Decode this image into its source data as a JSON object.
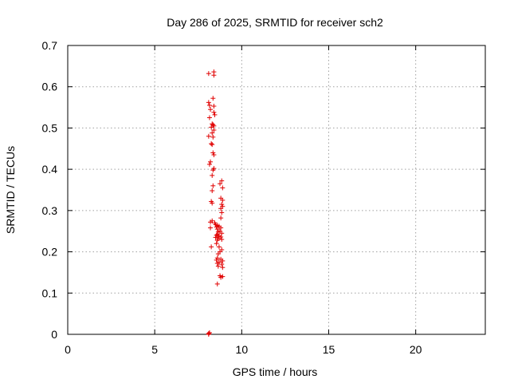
{
  "chart_data": {
    "type": "scatter",
    "title": "Day 286 of 2025, SRMTID for receiver sch2",
    "xlabel": "GPS time / hours",
    "ylabel": "SRMTID / TECUs",
    "xlim": [
      0,
      24
    ],
    "ylim": [
      0,
      0.7
    ],
    "xticks": [
      0,
      5,
      10,
      15,
      20
    ],
    "yticks": [
      0,
      0.1,
      0.2,
      0.3,
      0.4,
      0.5,
      0.6,
      0.7
    ],
    "ytick_labels": [
      "0",
      "0.1",
      "0.2",
      "0.3",
      "0.4",
      "0.5",
      "0.6",
      "0.7"
    ],
    "grid": true,
    "marker": "+",
    "color": "#e00000",
    "series": [
      {
        "name": "sch2",
        "points": [
          [
            8.1,
            0.632
          ],
          [
            8.4,
            0.636
          ],
          [
            8.4,
            0.628
          ],
          [
            8.35,
            0.572
          ],
          [
            8.1,
            0.562
          ],
          [
            8.15,
            0.555
          ],
          [
            8.4,
            0.553
          ],
          [
            8.2,
            0.545
          ],
          [
            8.4,
            0.538
          ],
          [
            8.45,
            0.532
          ],
          [
            8.15,
            0.525
          ],
          [
            8.3,
            0.51
          ],
          [
            8.35,
            0.508
          ],
          [
            8.4,
            0.505
          ],
          [
            8.25,
            0.502
          ],
          [
            8.4,
            0.495
          ],
          [
            8.3,
            0.488
          ],
          [
            8.1,
            0.48
          ],
          [
            8.35,
            0.478
          ],
          [
            8.25,
            0.462
          ],
          [
            8.3,
            0.46
          ],
          [
            8.35,
            0.44
          ],
          [
            8.4,
            0.435
          ],
          [
            8.2,
            0.418
          ],
          [
            8.15,
            0.412
          ],
          [
            8.4,
            0.402
          ],
          [
            8.35,
            0.398
          ],
          [
            8.3,
            0.385
          ],
          [
            8.85,
            0.372
          ],
          [
            8.75,
            0.365
          ],
          [
            8.35,
            0.36
          ],
          [
            8.9,
            0.355
          ],
          [
            8.3,
            0.348
          ],
          [
            8.8,
            0.33
          ],
          [
            8.9,
            0.325
          ],
          [
            8.25,
            0.322
          ],
          [
            8.3,
            0.318
          ],
          [
            8.85,
            0.315
          ],
          [
            8.9,
            0.31
          ],
          [
            8.8,
            0.305
          ],
          [
            8.85,
            0.295
          ],
          [
            8.8,
            0.282
          ],
          [
            8.3,
            0.275
          ],
          [
            8.2,
            0.272
          ],
          [
            8.45,
            0.27
          ],
          [
            8.5,
            0.266
          ],
          [
            8.6,
            0.264
          ],
          [
            8.7,
            0.262
          ],
          [
            8.55,
            0.26
          ],
          [
            8.8,
            0.258
          ],
          [
            8.2,
            0.258
          ],
          [
            8.6,
            0.255
          ],
          [
            8.75,
            0.25
          ],
          [
            8.65,
            0.248
          ],
          [
            8.85,
            0.245
          ],
          [
            8.6,
            0.242
          ],
          [
            8.55,
            0.24
          ],
          [
            8.7,
            0.238
          ],
          [
            8.8,
            0.236
          ],
          [
            8.5,
            0.235
          ],
          [
            8.65,
            0.232
          ],
          [
            8.85,
            0.23
          ],
          [
            8.6,
            0.228
          ],
          [
            8.55,
            0.22
          ],
          [
            8.25,
            0.212
          ],
          [
            8.7,
            0.212
          ],
          [
            8.85,
            0.205
          ],
          [
            8.75,
            0.2
          ],
          [
            8.65,
            0.195
          ],
          [
            8.6,
            0.185
          ],
          [
            8.8,
            0.182
          ],
          [
            8.55,
            0.18
          ],
          [
            8.9,
            0.178
          ],
          [
            8.7,
            0.175
          ],
          [
            8.6,
            0.172
          ],
          [
            8.85,
            0.17
          ],
          [
            8.65,
            0.165
          ],
          [
            8.9,
            0.162
          ],
          [
            8.75,
            0.142
          ],
          [
            8.9,
            0.14
          ],
          [
            8.8,
            0.138
          ],
          [
            8.6,
            0.122
          ],
          [
            8.1,
            0.002
          ],
          [
            8.1,
            0.0
          ],
          [
            8.15,
            0.004
          ]
        ]
      }
    ]
  }
}
